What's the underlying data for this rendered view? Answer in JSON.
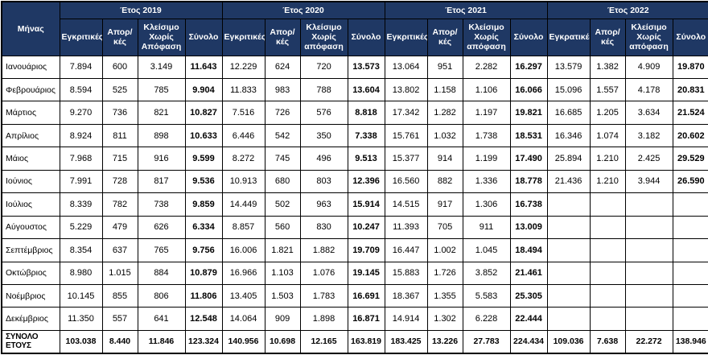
{
  "chart_data": {
    "type": "table",
    "month_header": "Μήνας",
    "year_groups": [
      {
        "label": "Έτος 2019",
        "subheaders": [
          "Εγκριτικές",
          "Απορ/κές",
          "Κλείσιμο Χωρίς Απόφαση",
          "Σύνολο"
        ]
      },
      {
        "label": "Έτος 2020",
        "subheaders": [
          "Εγκριτικές",
          "Απορ/κές",
          "Κλείσιμο Χωρίς απόφαση",
          "Σύνολο"
        ]
      },
      {
        "label": "Έτος 2021",
        "subheaders": [
          "Εγκριτικές",
          "Απορ/κές",
          "Κλείσιμο Χωρίς απόφαση",
          "Σύνολο"
        ]
      },
      {
        "label": "Έτος 2022",
        "subheaders": [
          "Εγκρατικές",
          "Απορ/κές",
          "Κλείσιμο Χωρίς απόφαση",
          "Σύνολο"
        ]
      }
    ],
    "rows": [
      {
        "month": "Ιανουάριος",
        "total": false,
        "values": [
          "7.894",
          "600",
          "3.149",
          "11.643",
          "12.229",
          "624",
          "720",
          "13.573",
          "13.064",
          "951",
          "2.282",
          "16.297",
          "13.579",
          "1.382",
          "4.909",
          "19.870"
        ]
      },
      {
        "month": "Φεβρουάριος",
        "total": false,
        "values": [
          "8.594",
          "525",
          "785",
          "9.904",
          "11.833",
          "983",
          "788",
          "13.604",
          "13.802",
          "1.158",
          "1.106",
          "16.066",
          "15.096",
          "1.557",
          "4.178",
          "20.831"
        ]
      },
      {
        "month": "Μάρτιος",
        "total": false,
        "values": [
          "9.270",
          "736",
          "821",
          "10.827",
          "7.516",
          "726",
          "576",
          "8.818",
          "17.342",
          "1.282",
          "1.197",
          "19.821",
          "16.685",
          "1.205",
          "3.634",
          "21.524"
        ]
      },
      {
        "month": "Απρίλιος",
        "total": false,
        "values": [
          "8.924",
          "811",
          "898",
          "10.633",
          "6.446",
          "542",
          "350",
          "7.338",
          "15.761",
          "1.032",
          "1.738",
          "18.531",
          "16.346",
          "1.074",
          "3.182",
          "20.602"
        ]
      },
      {
        "month": "Μάιος",
        "total": false,
        "values": [
          "7.968",
          "715",
          "916",
          "9.599",
          "8.272",
          "745",
          "496",
          "9.513",
          "15.377",
          "914",
          "1.199",
          "17.490",
          "25.894",
          "1.210",
          "2.425",
          "29.529"
        ]
      },
      {
        "month": "Ιούνιος",
        "total": false,
        "values": [
          "7.991",
          "728",
          "817",
          "9.536",
          "10.913",
          "680",
          "803",
          "12.396",
          "16.560",
          "882",
          "1.336",
          "18.778",
          "21.436",
          "1.210",
          "3.944",
          "26.590"
        ]
      },
      {
        "month": "Ιούλιος",
        "total": false,
        "values": [
          "8.339",
          "782",
          "738",
          "9.859",
          "14.449",
          "502",
          "963",
          "15.914",
          "14.515",
          "917",
          "1.306",
          "16.738",
          "",
          "",
          "",
          ""
        ]
      },
      {
        "month": "Αύγουστος",
        "total": false,
        "values": [
          "5.229",
          "479",
          "626",
          "6.334",
          "8.857",
          "560",
          "830",
          "10.247",
          "11.393",
          "705",
          "911",
          "13.009",
          "",
          "",
          "",
          ""
        ]
      },
      {
        "month": "Σεπτέμβριος",
        "total": false,
        "values": [
          "8.354",
          "637",
          "765",
          "9.756",
          "16.006",
          "1.821",
          "1.882",
          "19.709",
          "16.447",
          "1.002",
          "1.045",
          "18.494",
          "",
          "",
          "",
          ""
        ]
      },
      {
        "month": "Οκτώβριος",
        "total": false,
        "values": [
          "8.980",
          "1.015",
          "884",
          "10.879",
          "16.966",
          "1.103",
          "1.076",
          "19.145",
          "15.883",
          "1.726",
          "3.852",
          "21.461",
          "",
          "",
          "",
          ""
        ]
      },
      {
        "month": "Νοέμβριος",
        "total": false,
        "values": [
          "10.145",
          "855",
          "806",
          "11.806",
          "13.405",
          "1.503",
          "1.783",
          "16.691",
          "18.367",
          "1.355",
          "5.583",
          "25.305",
          "",
          "",
          "",
          ""
        ]
      },
      {
        "month": "Δεκέμβριος",
        "total": false,
        "values": [
          "11.350",
          "557",
          "641",
          "12.548",
          "14.064",
          "909",
          "1.898",
          "16.871",
          "14.914",
          "1.302",
          "6.228",
          "22.444",
          "",
          "",
          "",
          ""
        ]
      },
      {
        "month": "ΣΥΝΟΛΟ ΕΤΟΥΣ",
        "total": true,
        "values": [
          "103.038",
          "8.440",
          "11.846",
          "123.324",
          "140.956",
          "10.698",
          "12.165",
          "163.819",
          "183.425",
          "13.226",
          "27.783",
          "224.434",
          "109.036",
          "7.638",
          "22.272",
          "138.946"
        ]
      }
    ],
    "colors": {
      "header_bg": "#1F3864",
      "header_text": "#FFFFFF",
      "border": "#000000",
      "cell_bg": "#FFFFFF"
    }
  }
}
